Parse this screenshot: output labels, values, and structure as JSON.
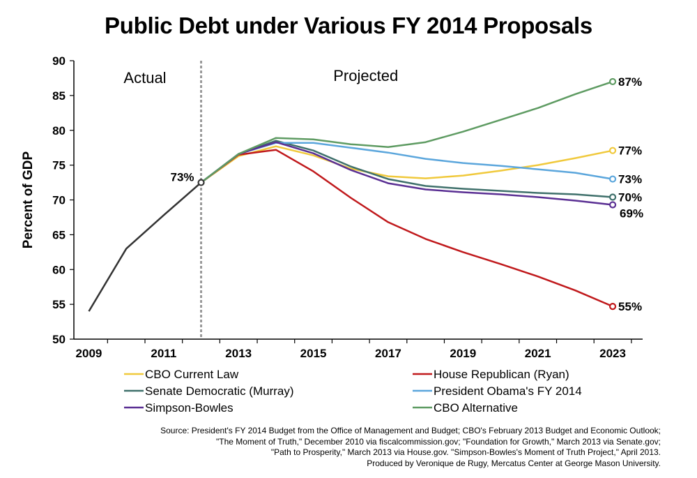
{
  "chart_data": {
    "type": "line",
    "title": "Public Debt under Various FY 2014 Proposals",
    "ylabel": "Percent of GDP",
    "xlabel": "",
    "ylim": [
      50,
      90
    ],
    "xlim": [
      2008.6,
      2023.8
    ],
    "yticks": [
      50,
      55,
      60,
      65,
      70,
      75,
      80,
      85,
      90
    ],
    "xticks": [
      2009,
      2011,
      2013,
      2015,
      2017,
      2019,
      2021,
      2023
    ],
    "divider_x": 2012,
    "region_labels": {
      "actual": "Actual",
      "projected": "Projected"
    },
    "actual_series": {
      "color": "#333333",
      "x": [
        2009,
        2010,
        2011,
        2012
      ],
      "values": [
        54,
        63,
        67.8,
        72.5
      ],
      "end_label": "73%"
    },
    "series": [
      {
        "name": "CBO Current Law",
        "color": "#F0C93C",
        "x": [
          2012,
          2013,
          2014,
          2015,
          2016,
          2017,
          2018,
          2019,
          2020,
          2021,
          2022,
          2023
        ],
        "values": [
          72.5,
          76.3,
          77.7,
          76.4,
          74.5,
          73.4,
          73.1,
          73.5,
          74.2,
          75.0,
          76.0,
          77.1
        ],
        "end_label": "77%"
      },
      {
        "name": "House Republican (Ryan)",
        "color": "#C0191C",
        "x": [
          2012,
          2013,
          2014,
          2015,
          2016,
          2017,
          2018,
          2019,
          2020,
          2021,
          2022,
          2023
        ],
        "values": [
          72.5,
          76.5,
          77.2,
          74.1,
          70.3,
          66.8,
          64.4,
          62.5,
          60.8,
          59.0,
          57.0,
          54.7
        ],
        "end_label": "55%"
      },
      {
        "name": "Senate Democratic (Murray)",
        "color": "#3F706B",
        "x": [
          2012,
          2013,
          2014,
          2015,
          2016,
          2017,
          2018,
          2019,
          2020,
          2021,
          2022,
          2023
        ],
        "values": [
          72.5,
          76.6,
          78.5,
          77.1,
          74.8,
          73.0,
          72.0,
          71.6,
          71.3,
          71.0,
          70.8,
          70.4
        ],
        "end_label": "70%"
      },
      {
        "name": "President Obama's FY 2014",
        "color": "#5BA6DC",
        "x": [
          2012,
          2013,
          2014,
          2015,
          2016,
          2017,
          2018,
          2019,
          2020,
          2021,
          2022,
          2023
        ],
        "values": [
          72.5,
          76.6,
          78.2,
          78.2,
          77.5,
          76.8,
          75.9,
          75.3,
          74.9,
          74.4,
          73.9,
          73.0
        ],
        "end_label": "73%"
      },
      {
        "name": "Simpson-Bowles",
        "color": "#5A2F93",
        "x": [
          2012,
          2013,
          2014,
          2015,
          2016,
          2017,
          2018,
          2019,
          2020,
          2021,
          2022,
          2023
        ],
        "values": [
          72.5,
          76.6,
          78.3,
          76.7,
          74.3,
          72.4,
          71.5,
          71.1,
          70.8,
          70.4,
          69.9,
          69.3
        ],
        "end_label": "69%"
      },
      {
        "name": "CBO Alternative",
        "color": "#5E9B62",
        "x": [
          2012,
          2013,
          2014,
          2015,
          2016,
          2017,
          2018,
          2019,
          2020,
          2021,
          2022,
          2023
        ],
        "values": [
          72.5,
          76.6,
          78.9,
          78.7,
          78.0,
          77.6,
          78.3,
          79.8,
          81.5,
          83.2,
          85.2,
          87.0
        ],
        "end_label": "87%"
      }
    ]
  },
  "source_note": [
    "Source:  President's FY 2014 Budget from the Office of Management and Budget; CBO's February 2013 Budget and Economic Outlook;",
    "\"The Moment of Truth,\" December 2010 via fiscalcommission.gov; \"Foundation for Growth,\" March 2013 via Senate.gov;",
    "\"Path to Prosperity,\" March 2013 via House.gov. \"Simpson-Bowles's Moment of Truth Project,\" April 2013.",
    "Produced by Veronique de Rugy, Mercatus Center at George Mason University."
  ]
}
